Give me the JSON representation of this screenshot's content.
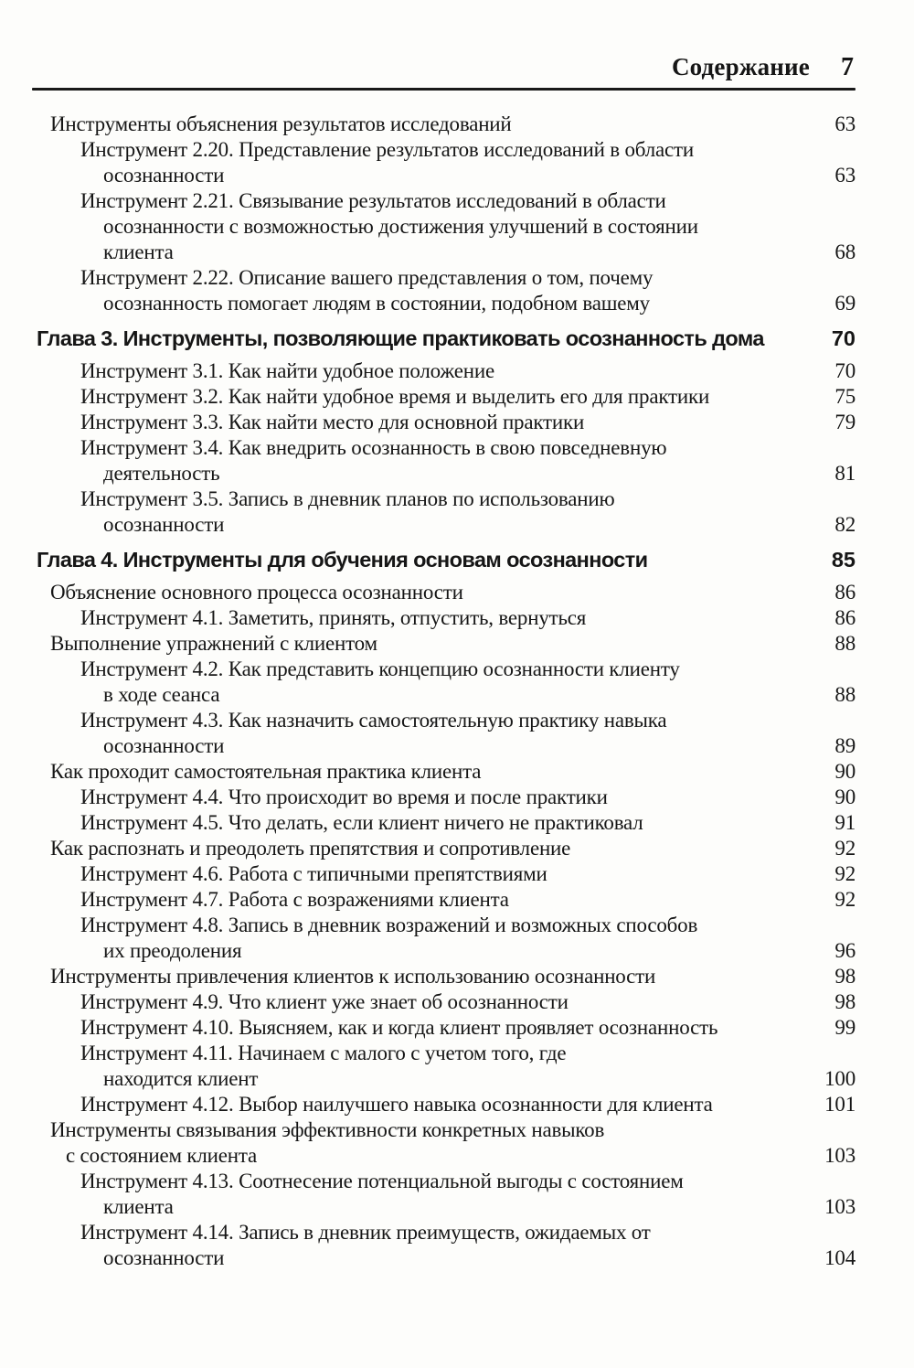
{
  "header": {
    "running_title": "Содержание",
    "page_number": "7"
  },
  "toc": {
    "lines": [
      {
        "text": "Инструменты объяснения результатов исследований",
        "indent": "l0",
        "page": "63",
        "style": "normal"
      },
      {
        "text": "Инструмент 2.20. Представление результатов исследований в области",
        "indent": "l1",
        "page": "",
        "style": "normal"
      },
      {
        "text": "осознанности",
        "indent": "l1c",
        "page": "63",
        "style": "normal"
      },
      {
        "text": "Инструмент 2.21. Связывание результатов исследований в области",
        "indent": "l1",
        "page": "",
        "style": "normal"
      },
      {
        "text": "осознанности с возможностью достижения улучшений в состоянии",
        "indent": "l1c",
        "page": "",
        "style": "normal"
      },
      {
        "text": "клиента",
        "indent": "l1c",
        "page": "68",
        "style": "normal"
      },
      {
        "text": "Инструмент 2.22. Описание вашего представления о том, почему",
        "indent": "l1",
        "page": "",
        "style": "normal"
      },
      {
        "text": "осознанность помогает людям в состоянии, подобном вашему",
        "indent": "l1c",
        "page": "69",
        "style": "normal"
      },
      {
        "text": "Глава 3. Инструменты, позволяющие практиковать осознанность дома",
        "indent": "chapter",
        "page": "70",
        "style": "chapter"
      },
      {
        "text": "Инструмент 3.1. Как найти удобное положение",
        "indent": "l1",
        "page": "70",
        "style": "normal"
      },
      {
        "text": "Инструмент 3.2. Как найти удобное время и выделить его для практики",
        "indent": "l1",
        "page": "75",
        "style": "normal"
      },
      {
        "text": "Инструмент 3.3. Как найти место для основной практики",
        "indent": "l1",
        "page": "79",
        "style": "normal"
      },
      {
        "text": "Инструмент 3.4. Как внедрить осознанность в свою повседневную",
        "indent": "l1",
        "page": "",
        "style": "normal"
      },
      {
        "text": "деятельность",
        "indent": "l1c",
        "page": "81",
        "style": "normal"
      },
      {
        "text": "Инструмент 3.5. Запись в дневник планов по использованию",
        "indent": "l1",
        "page": "",
        "style": "normal"
      },
      {
        "text": "осознанности",
        "indent": "l1c",
        "page": "82",
        "style": "normal"
      },
      {
        "text": "Глава 4. Инструменты для обучения основам осознанности",
        "indent": "chapter",
        "page": "85",
        "style": "chapter"
      },
      {
        "text": "Объяснение основного процесса осознанности",
        "indent": "l0",
        "page": "86",
        "style": "normal"
      },
      {
        "text": "Инструмент 4.1. Заметить, принять, отпустить, вернуться",
        "indent": "l1",
        "page": "86",
        "style": "normal"
      },
      {
        "text": "Выполнение упражнений с клиентом",
        "indent": "l0",
        "page": "88",
        "style": "normal"
      },
      {
        "text": "Инструмент 4.2. Как представить концепцию осознанности клиенту",
        "indent": "l1",
        "page": "",
        "style": "normal"
      },
      {
        "text": "в ходе сеанса",
        "indent": "l1c",
        "page": "88",
        "style": "normal"
      },
      {
        "text": "Инструмент 4.3. Как назначить самостоятельную практику навыка",
        "indent": "l1",
        "page": "",
        "style": "normal"
      },
      {
        "text": "осознанности",
        "indent": "l1c",
        "page": "89",
        "style": "normal"
      },
      {
        "text": "Как проходит самостоятельная практика клиента",
        "indent": "l0",
        "page": "90",
        "style": "normal"
      },
      {
        "text": "Инструмент 4.4. Что происходит во время и после практики",
        "indent": "l1",
        "page": "90",
        "style": "normal"
      },
      {
        "text": "Инструмент 4.5. Что делать, если клиент ничего не практиковал",
        "indent": "l1",
        "page": "91",
        "style": "normal"
      },
      {
        "text": "Как распознать и преодолеть препятствия и сопротивление",
        "indent": "l0",
        "page": "92",
        "style": "normal"
      },
      {
        "text": "Инструмент 4.6. Работа с типичными препятствиями",
        "indent": "l1",
        "page": "92",
        "style": "normal"
      },
      {
        "text": "Инструмент 4.7. Работа с возражениями клиента",
        "indent": "l1",
        "page": "92",
        "style": "normal"
      },
      {
        "text": "Инструмент 4.8. Запись в дневник возражений и возможных способов",
        "indent": "l1",
        "page": "",
        "style": "normal"
      },
      {
        "text": "их преодоления",
        "indent": "l1c",
        "page": "96",
        "style": "normal"
      },
      {
        "text": "Инструменты привлечения клиентов к использованию осознанности",
        "indent": "l0",
        "page": "98",
        "style": "normal"
      },
      {
        "text": "Инструмент 4.9. Что клиент уже знает об осознанности",
        "indent": "l1",
        "page": "98",
        "style": "normal"
      },
      {
        "text": "Инструмент 4.10. Выясняем, как и когда клиент проявляет осознанность",
        "indent": "l1",
        "page": "99",
        "style": "normal"
      },
      {
        "text": "Инструмент 4.11. Начинаем с малого с учетом того, где",
        "indent": "l1",
        "page": "",
        "style": "normal"
      },
      {
        "text": "находится клиент",
        "indent": "l1c",
        "page": "100",
        "style": "normal"
      },
      {
        "text": "Инструмент 4.12. Выбор наилучшего навыка осознанности для клиента",
        "indent": "l1",
        "page": "101",
        "style": "normal"
      },
      {
        "text": "Инструменты связывания эффективности конкретных навыков",
        "indent": "l0",
        "page": "",
        "style": "normal"
      },
      {
        "text": "с состоянием клиента",
        "indent": "l0c",
        "page": "103",
        "style": "normal"
      },
      {
        "text": "Инструмент 4.13. Соотнесение потенциальной выгоды с состоянием",
        "indent": "l1",
        "page": "",
        "style": "normal"
      },
      {
        "text": "клиента",
        "indent": "l1c",
        "page": "103",
        "style": "normal"
      },
      {
        "text": "Инструмент 4.14. Запись в дневник преимуществ, ожидаемых от",
        "indent": "l1",
        "page": "",
        "style": "normal"
      },
      {
        "text": "осознанности",
        "indent": "l1c",
        "page": "104",
        "style": "normal"
      }
    ]
  }
}
